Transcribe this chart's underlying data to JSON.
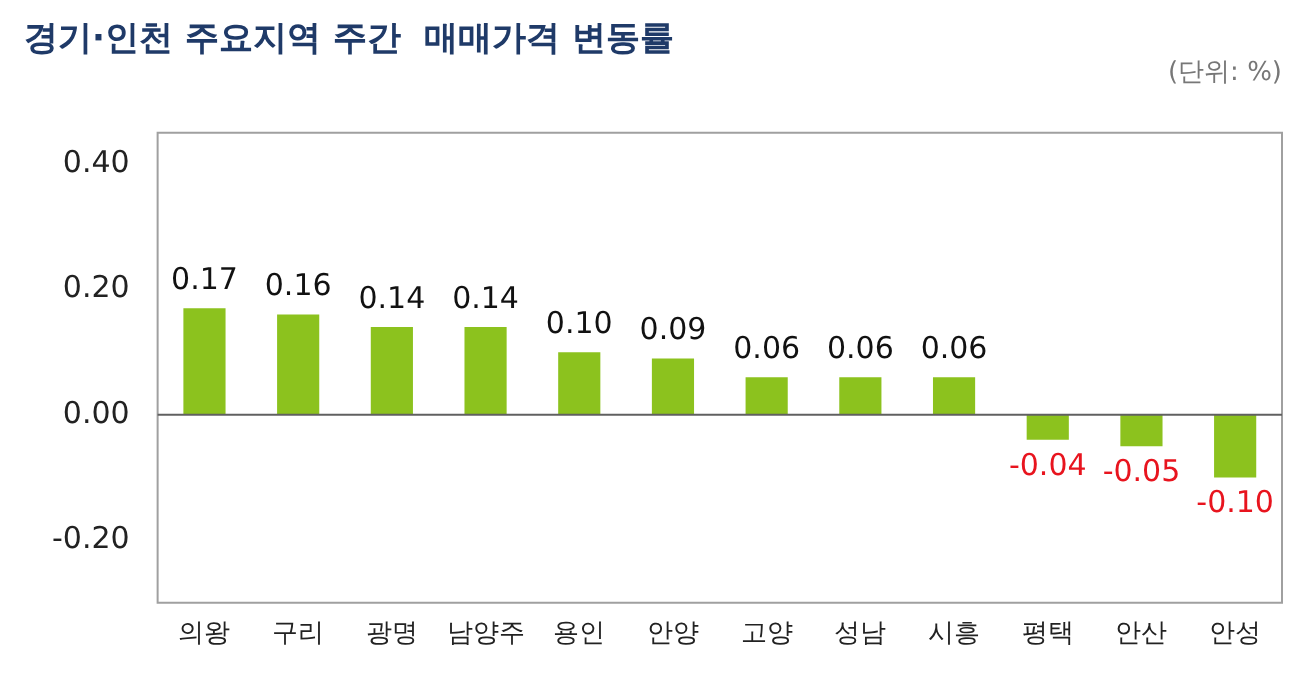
{
  "chart_data": {
    "type": "bar",
    "title": "경기·인천 주요지역 주간  매매가격 변동률",
    "annotations": [
      "(단위: %)"
    ],
    "categories": [
      "의왕",
      "구리",
      "광명",
      "남양주",
      "용인",
      "안양",
      "고양",
      "성남",
      "시흥",
      "평택",
      "안산",
      "안성"
    ],
    "values": [
      0.17,
      0.16,
      0.14,
      0.14,
      0.1,
      0.09,
      0.06,
      0.06,
      0.06,
      -0.04,
      -0.05,
      -0.1
    ],
    "value_labels": [
      "0.17",
      "0.16",
      "0.14",
      "0.14",
      "0.10",
      "0.09",
      "0.06",
      "0.06",
      "0.06",
      "-0.04",
      "-0.05",
      "-0.10"
    ],
    "color": "#8cc21e",
    "ylim": [
      -0.3,
      0.45
    ],
    "yticks": [
      {
        "value": -0.2,
        "label": "-0.20"
      },
      {
        "value": 0,
        "label": "0.00"
      },
      {
        "value": 0.2,
        "label": "0.20"
      },
      {
        "value": 0.4,
        "label": "0.40"
      }
    ],
    "legend": false
  }
}
